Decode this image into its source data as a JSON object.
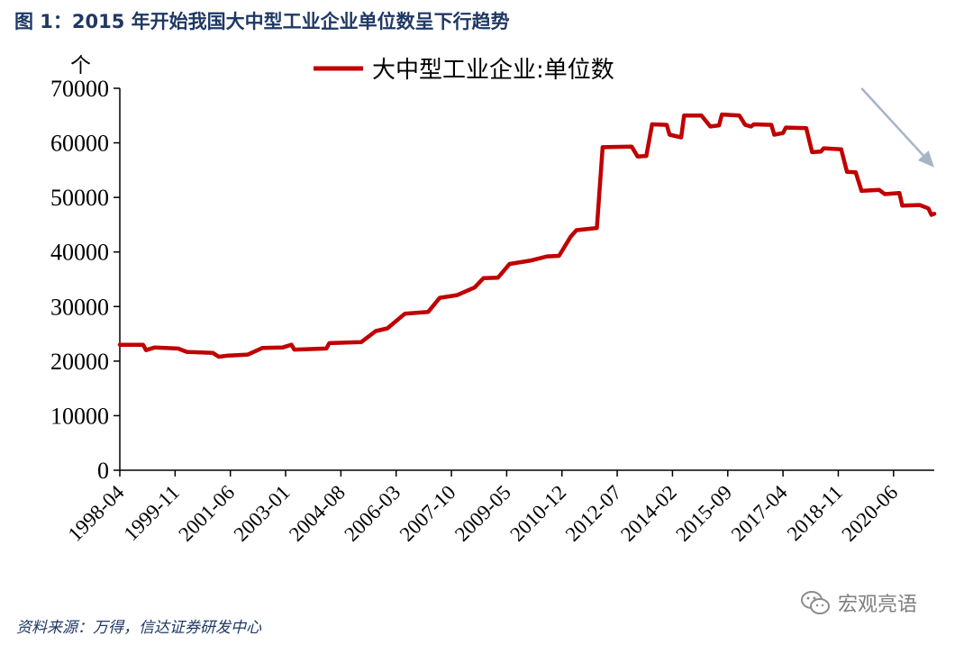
{
  "header": {
    "title": "图 1：2015 年开始我国大中型工业企业单位数呈下行趋势"
  },
  "footer": {
    "source": "资料来源：万得，信达证券研发中心"
  },
  "watermark": {
    "text": "宏观亮语",
    "icon": "wechat-icon"
  },
  "colors": {
    "series": "#c00000",
    "trend_arrow": "#a6b4c6",
    "title": "#1f3864"
  },
  "chart_data": {
    "type": "line",
    "ylabel": "个",
    "ylim": [
      0,
      70000
    ],
    "yticks": [
      0,
      10000,
      20000,
      30000,
      40000,
      50000,
      60000,
      70000
    ],
    "ytick_labels": [
      "0",
      "10000",
      "20000",
      "30000",
      "40000",
      "50000",
      "60000",
      "70000"
    ],
    "xtick_labels": [
      "1998-04",
      "1999-11",
      "2001-06",
      "2003-01",
      "2004-08",
      "2006-03",
      "2007-10",
      "2009-05",
      "2010-12",
      "2012-07",
      "2014-02",
      "2015-09",
      "2017-04",
      "2018-11",
      "2020-06"
    ],
    "x_start": "1998-04",
    "x_end": "2021-08",
    "grid": false,
    "legend": {
      "position": "top",
      "entries": [
        "大中型工业企业:单位数"
      ]
    },
    "annotations": [
      {
        "type": "arrow",
        "meaning": "downward trend",
        "from": [
          "2019-07",
          70000
        ],
        "to": [
          "2021-08",
          55500
        ]
      }
    ],
    "series": [
      {
        "name": "大中型工业企业:单位数",
        "points": [
          [
            "1998-04",
            23000
          ],
          [
            "1998-12",
            23000
          ],
          [
            "1999-01",
            22000
          ],
          [
            "1999-04",
            22500
          ],
          [
            "1999-12",
            22300
          ],
          [
            "2000-03",
            21700
          ],
          [
            "2000-12",
            21500
          ],
          [
            "2001-02",
            20800
          ],
          [
            "2001-05",
            21000
          ],
          [
            "2001-12",
            21200
          ],
          [
            "2002-05",
            22400
          ],
          [
            "2002-12",
            22500
          ],
          [
            "2003-03",
            23000
          ],
          [
            "2003-04",
            22100
          ],
          [
            "2004-03",
            22300
          ],
          [
            "2004-04",
            23300
          ],
          [
            "2005-03",
            23500
          ],
          [
            "2005-08",
            25500
          ],
          [
            "2005-12",
            26000
          ],
          [
            "2006-06",
            28700
          ],
          [
            "2007-02",
            29000
          ],
          [
            "2007-06",
            31600
          ],
          [
            "2007-12",
            32100
          ],
          [
            "2008-06",
            33500
          ],
          [
            "2008-09",
            35200
          ],
          [
            "2009-02",
            35300
          ],
          [
            "2009-03",
            35900
          ],
          [
            "2009-06",
            37800
          ],
          [
            "2010-01",
            38400
          ],
          [
            "2010-07",
            39200
          ],
          [
            "2010-11",
            39300
          ],
          [
            "2011-03",
            42800
          ],
          [
            "2011-05",
            44000
          ],
          [
            "2011-12",
            44400
          ],
          [
            "2012-02",
            59200
          ],
          [
            "2012-12",
            59300
          ],
          [
            "2013-02",
            57500
          ],
          [
            "2013-05",
            57600
          ],
          [
            "2013-07",
            63400
          ],
          [
            "2013-12",
            63300
          ],
          [
            "2014-01",
            61500
          ],
          [
            "2014-05",
            61000
          ],
          [
            "2014-06",
            65000
          ],
          [
            "2014-12",
            65000
          ],
          [
            "2015-03",
            63000
          ],
          [
            "2015-06",
            63200
          ],
          [
            "2015-07",
            65200
          ],
          [
            "2016-01",
            65000
          ],
          [
            "2016-03",
            63300
          ],
          [
            "2016-05",
            63000
          ],
          [
            "2016-06",
            63400
          ],
          [
            "2016-12",
            63300
          ],
          [
            "2017-01",
            61500
          ],
          [
            "2017-04",
            61800
          ],
          [
            "2017-05",
            62800
          ],
          [
            "2017-12",
            62700
          ],
          [
            "2018-02",
            58300
          ],
          [
            "2018-05",
            58400
          ],
          [
            "2018-06",
            59000
          ],
          [
            "2018-12",
            58800
          ],
          [
            "2019-02",
            54700
          ],
          [
            "2019-05",
            54600
          ],
          [
            "2019-07",
            51200
          ],
          [
            "2020-01",
            51400
          ],
          [
            "2020-03",
            50600
          ],
          [
            "2020-08",
            50800
          ],
          [
            "2020-09",
            48500
          ],
          [
            "2021-03",
            48600
          ],
          [
            "2021-06",
            48000
          ],
          [
            "2021-07",
            46800
          ],
          [
            "2021-08",
            47000
          ]
        ]
      }
    ]
  }
}
